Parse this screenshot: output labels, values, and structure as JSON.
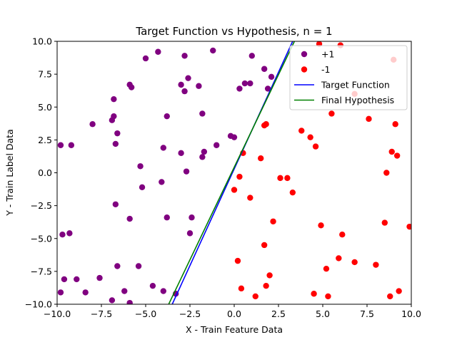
{
  "chart_data": {
    "type": "scatter",
    "title": "Target Function vs Hypothesis, n = 1",
    "xlabel": "X - Train Feature Data",
    "ylabel": "Y - Train Label Data",
    "xlim": [
      -10,
      10
    ],
    "ylim": [
      -10,
      10
    ],
    "xticks": [
      -10,
      -7.5,
      -5,
      -2.5,
      0,
      2.5,
      5,
      7.5,
      10
    ],
    "yticks": [
      -10,
      -7.5,
      -5,
      -2.5,
      0,
      2.5,
      5,
      7.5,
      10
    ],
    "xtick_labels": [
      "−10.0",
      "−7.5",
      "−5.0",
      "−2.5",
      "0.0",
      "2.5",
      "5.0",
      "7.5",
      "10.0"
    ],
    "ytick_labels": [
      "−10.0",
      "−7.5",
      "−5.0",
      "−2.5",
      "0.0",
      "2.5",
      "5.0",
      "7.5",
      "10.0"
    ],
    "grid": false,
    "legend_position": "top-right",
    "series": [
      {
        "name": "+1",
        "kind": "scatter",
        "color": "#800080",
        "points": [
          [
            -9.8,
            2.1
          ],
          [
            -9.2,
            2.1
          ],
          [
            -9.7,
            -4.7
          ],
          [
            -9.3,
            -4.6
          ],
          [
            -9.8,
            -9.1
          ],
          [
            -9.6,
            -8.1
          ],
          [
            -8.9,
            -8.1
          ],
          [
            -8.4,
            -9.1
          ],
          [
            -7.6,
            -8.0
          ],
          [
            -8.0,
            3.7
          ],
          [
            -6.9,
            4.0
          ],
          [
            -6.8,
            4.3
          ],
          [
            -6.8,
            5.6
          ],
          [
            -6.7,
            2.2
          ],
          [
            -6.6,
            3.0
          ],
          [
            -6.7,
            -2.4
          ],
          [
            -6.6,
            -7.1
          ],
          [
            -6.9,
            -9.7
          ],
          [
            -6.2,
            -9.0
          ],
          [
            -5.9,
            -9.9
          ],
          [
            -5.9,
            -3.5
          ],
          [
            -5.3,
            0.5
          ],
          [
            -5.2,
            -1.1
          ],
          [
            -5.4,
            -7.1
          ],
          [
            -5.9,
            6.7
          ],
          [
            -5.8,
            6.5
          ],
          [
            -5.0,
            8.7
          ],
          [
            -4.3,
            9.2
          ],
          [
            -4.1,
            -0.7
          ],
          [
            -4.0,
            1.9
          ],
          [
            -3.8,
            4.3
          ],
          [
            -3.8,
            -3.4
          ],
          [
            -3.3,
            -9.2
          ],
          [
            -4.0,
            -9.0
          ],
          [
            -4.6,
            -8.6
          ],
          [
            -3.0,
            6.7
          ],
          [
            -2.8,
            6.2
          ],
          [
            -2.8,
            8.9
          ],
          [
            -2.6,
            7.2
          ],
          [
            -2.0,
            6.6
          ],
          [
            -3.0,
            1.5
          ],
          [
            -2.7,
            0.1
          ],
          [
            -2.4,
            -3.4
          ],
          [
            -2.5,
            -4.6
          ],
          [
            -1.8,
            4.5
          ],
          [
            -1.7,
            1.6
          ],
          [
            -1.8,
            1.2
          ],
          [
            -1.0,
            2.1
          ],
          [
            -1.2,
            9.3
          ],
          [
            -0.2,
            2.8
          ],
          [
            0.0,
            2.7
          ],
          [
            0.3,
            6.4
          ],
          [
            0.6,
            6.8
          ],
          [
            0.9,
            6.8
          ],
          [
            1.0,
            8.9
          ],
          [
            1.7,
            7.9
          ],
          [
            1.9,
            6.4
          ],
          [
            2.1,
            7.3
          ]
        ]
      },
      {
        "name": "-1",
        "kind": "scatter",
        "color": "#ff0000",
        "points": [
          [
            0.0,
            -1.3
          ],
          [
            0.3,
            -0.3
          ],
          [
            0.9,
            -1.9
          ],
          [
            0.5,
            1.5
          ],
          [
            0.2,
            -6.7
          ],
          [
            0.4,
            -8.8
          ],
          [
            1.2,
            -9.4
          ],
          [
            1.7,
            -5.5
          ],
          [
            1.8,
            -8.6
          ],
          [
            2.0,
            -7.8
          ],
          [
            2.2,
            -3.7
          ],
          [
            1.5,
            1.1
          ],
          [
            1.7,
            3.6
          ],
          [
            1.8,
            3.7
          ],
          [
            2.6,
            -0.4
          ],
          [
            3.0,
            -0.4
          ],
          [
            3.3,
            -1.5
          ],
          [
            3.8,
            3.2
          ],
          [
            4.3,
            2.7
          ],
          [
            4.6,
            2.0
          ],
          [
            4.5,
            -9.2
          ],
          [
            4.9,
            -4.0
          ],
          [
            5.2,
            -7.3
          ],
          [
            5.3,
            -9.4
          ],
          [
            5.5,
            4.5
          ],
          [
            5.9,
            -6.5
          ],
          [
            6.1,
            -4.7
          ],
          [
            6.8,
            -6.8
          ],
          [
            6.8,
            6.0
          ],
          [
            6.0,
            9.7
          ],
          [
            4.8,
            9.8
          ],
          [
            7.6,
            4.1
          ],
          [
            8.0,
            -7.0
          ],
          [
            8.5,
            -3.8
          ],
          [
            8.6,
            0.0
          ],
          [
            8.8,
            -9.4
          ],
          [
            8.9,
            1.6
          ],
          [
            9.1,
            3.7
          ],
          [
            9.0,
            8.6
          ],
          [
            9.2,
            1.3
          ],
          [
            9.3,
            -9.0
          ],
          [
            9.9,
            -4.1
          ]
        ]
      },
      {
        "name": "Target Function",
        "kind": "line",
        "color": "#0000ff",
        "points": [
          [
            -3.5,
            -10.0
          ],
          [
            3.3,
            10.0
          ]
        ]
      },
      {
        "name": "Final Hypothesis",
        "kind": "line",
        "color": "#008000",
        "points": [
          [
            -3.7,
            -10.0
          ],
          [
            3.4,
            10.0
          ]
        ]
      }
    ]
  }
}
